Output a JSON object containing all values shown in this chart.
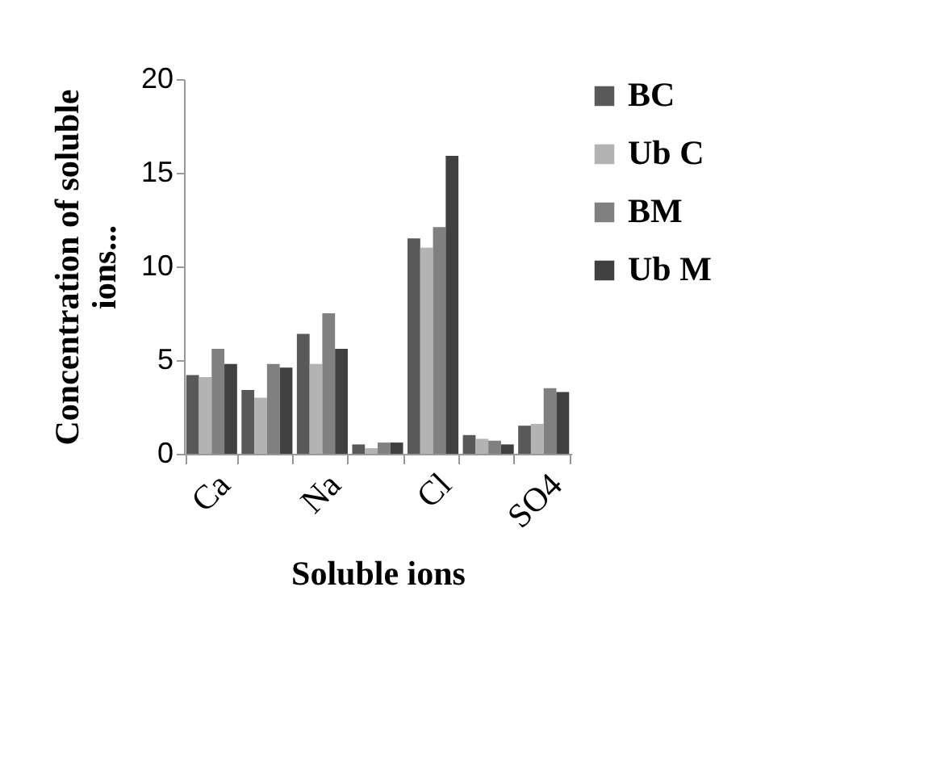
{
  "chart_data": {
    "type": "bar",
    "xlabel": "Soluble ions",
    "ylabel": "Concentration of soluble ions...",
    "categories": [
      "Ca",
      null,
      "Na",
      null,
      "Cl",
      null,
      "SO4"
    ],
    "series": [
      {
        "name": "BC",
        "color": "#595959",
        "values": [
          4.2,
          3.4,
          6.4,
          0.5,
          11.5,
          1.0,
          1.5
        ]
      },
      {
        "name": "Ub C",
        "color": "#b3b3b3",
        "values": [
          4.1,
          3.0,
          4.8,
          0.3,
          11.0,
          0.8,
          1.6
        ]
      },
      {
        "name": "BM",
        "color": "#808080",
        "values": [
          5.6,
          4.8,
          7.5,
          0.6,
          12.1,
          0.7,
          3.5
        ]
      },
      {
        "name": "Ub M",
        "color": "#404040",
        "values": [
          4.8,
          4.6,
          5.6,
          0.6,
          15.9,
          0.5,
          3.3
        ]
      }
    ],
    "ylim": [
      0,
      20
    ],
    "yticks": [
      0,
      5,
      10,
      15,
      20
    ],
    "grid": false,
    "legend": "right"
  }
}
